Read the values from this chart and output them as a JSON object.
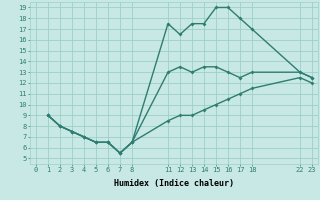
{
  "xlabel": "Humidex (Indice chaleur)",
  "bg_color": "#c8e8e5",
  "line_color": "#2e7d70",
  "grid_color": "#9ecfca",
  "xlim": [
    -0.5,
    23.5
  ],
  "ylim": [
    4.5,
    19.5
  ],
  "xticks": [
    0,
    1,
    2,
    3,
    4,
    5,
    6,
    7,
    8,
    11,
    12,
    13,
    14,
    15,
    16,
    17,
    18,
    22,
    23
  ],
  "yticks": [
    5,
    6,
    7,
    8,
    9,
    10,
    11,
    12,
    13,
    14,
    15,
    16,
    17,
    18,
    19
  ],
  "line1_x": [
    1,
    2,
    3,
    4,
    5,
    6,
    7,
    8,
    11,
    12,
    13,
    14,
    15,
    16,
    17,
    18,
    22,
    23
  ],
  "line1_y": [
    9,
    8,
    7.5,
    7,
    6.5,
    6.5,
    5.5,
    6.5,
    17.5,
    16.5,
    17.5,
    17.5,
    19,
    19,
    18,
    17,
    13,
    12.5
  ],
  "line2_x": [
    1,
    2,
    3,
    4,
    5,
    6,
    7,
    8,
    11,
    12,
    13,
    14,
    15,
    16,
    17,
    18,
    22,
    23
  ],
  "line2_y": [
    9,
    8,
    7.5,
    7,
    6.5,
    6.5,
    5.5,
    6.5,
    13,
    13.5,
    13,
    13.5,
    13.5,
    13,
    12.5,
    13,
    13,
    12.5
  ],
  "line3_x": [
    1,
    2,
    3,
    4,
    5,
    6,
    7,
    8,
    11,
    12,
    13,
    14,
    15,
    16,
    17,
    18,
    22,
    23
  ],
  "line3_y": [
    9,
    8,
    7.5,
    7,
    6.5,
    6.5,
    5.5,
    6.5,
    8.5,
    9,
    9,
    9.5,
    10,
    10.5,
    11,
    11.5,
    12.5,
    12
  ],
  "marker_size": 2,
  "line_width": 1.0
}
